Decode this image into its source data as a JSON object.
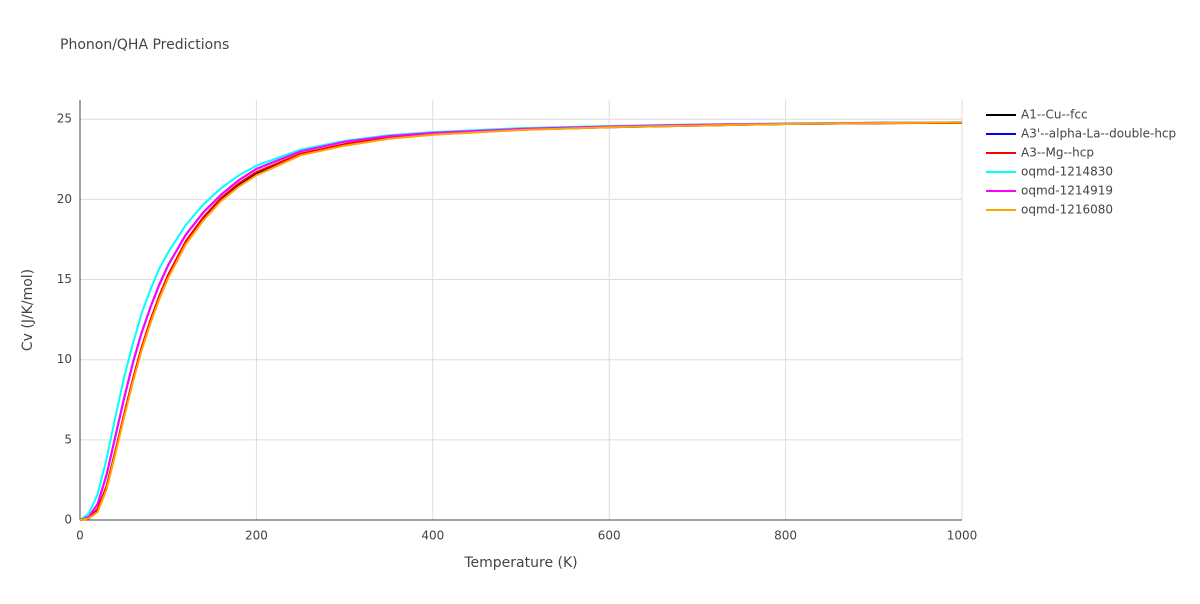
{
  "chart_data": {
    "type": "line",
    "title": "Phonon/QHA Predictions",
    "x_label": "Temperature (K)",
    "y_label": "Cv (J/K/mol)",
    "x": [
      0,
      10,
      20,
      30,
      40,
      50,
      60,
      70,
      80,
      90,
      100,
      120,
      140,
      160,
      180,
      200,
      250,
      300,
      350,
      400,
      500,
      600,
      700,
      800,
      900,
      1000
    ],
    "series": [
      {
        "name": "A1--Cu--fcc",
        "color": "#000000",
        "values": [
          0,
          0.1,
          0.6,
          2.0,
          4.2,
          6.5,
          8.7,
          10.7,
          12.4,
          13.9,
          15.2,
          17.3,
          18.8,
          20.0,
          20.9,
          21.6,
          22.8,
          23.4,
          23.8,
          24.05,
          24.35,
          24.5,
          24.6,
          24.7,
          24.75,
          24.78
        ]
      },
      {
        "name": "A3'--alpha-La--double-hcp",
        "color": "#0000ff",
        "values": [
          0,
          0.2,
          1.0,
          2.8,
          5.2,
          7.6,
          9.8,
          11.7,
          13.3,
          14.7,
          15.9,
          17.8,
          19.2,
          20.3,
          21.2,
          21.9,
          23.0,
          23.6,
          23.95,
          24.15,
          24.4,
          24.55,
          24.65,
          24.72,
          24.77,
          24.8
        ]
      },
      {
        "name": "A3--Mg--hcp",
        "color": "#ff0000",
        "values": [
          0,
          0.1,
          0.7,
          2.1,
          4.3,
          6.6,
          8.8,
          10.8,
          12.5,
          14.0,
          15.3,
          17.4,
          18.9,
          20.1,
          21.0,
          21.7,
          22.85,
          23.45,
          23.85,
          24.08,
          24.37,
          24.52,
          24.62,
          24.7,
          24.75,
          24.78
        ]
      },
      {
        "name": "oqmd-1214830",
        "color": "#00ffff",
        "values": [
          0,
          0.4,
          1.6,
          3.8,
          6.4,
          8.9,
          11.0,
          12.9,
          14.4,
          15.7,
          16.7,
          18.4,
          19.7,
          20.7,
          21.5,
          22.1,
          23.1,
          23.65,
          24.0,
          24.2,
          24.45,
          24.58,
          24.67,
          24.74,
          24.78,
          24.81
        ]
      },
      {
        "name": "oqmd-1214919",
        "color": "#ff00ff",
        "values": [
          0,
          0.2,
          1.0,
          2.8,
          5.2,
          7.6,
          9.8,
          11.7,
          13.3,
          14.7,
          15.9,
          17.8,
          19.2,
          20.3,
          21.2,
          21.9,
          23.0,
          23.6,
          23.95,
          24.15,
          24.4,
          24.55,
          24.65,
          24.72,
          24.77,
          24.8
        ]
      },
      {
        "name": "oqmd-1216080",
        "color": "#ffa500",
        "values": [
          0,
          0.1,
          0.5,
          1.9,
          4.1,
          6.4,
          8.6,
          10.6,
          12.3,
          13.8,
          15.1,
          17.2,
          18.7,
          19.9,
          20.8,
          21.5,
          22.75,
          23.35,
          23.78,
          24.03,
          24.33,
          24.5,
          24.6,
          24.7,
          24.76,
          24.8
        ]
      }
    ],
    "xlim": [
      0,
      1000
    ],
    "xticks": [
      0,
      200,
      400,
      600,
      800,
      1000
    ],
    "ylim": [
      0,
      26.2
    ],
    "yticks": [
      0,
      5,
      10,
      15,
      20,
      25
    ],
    "grid": true
  }
}
